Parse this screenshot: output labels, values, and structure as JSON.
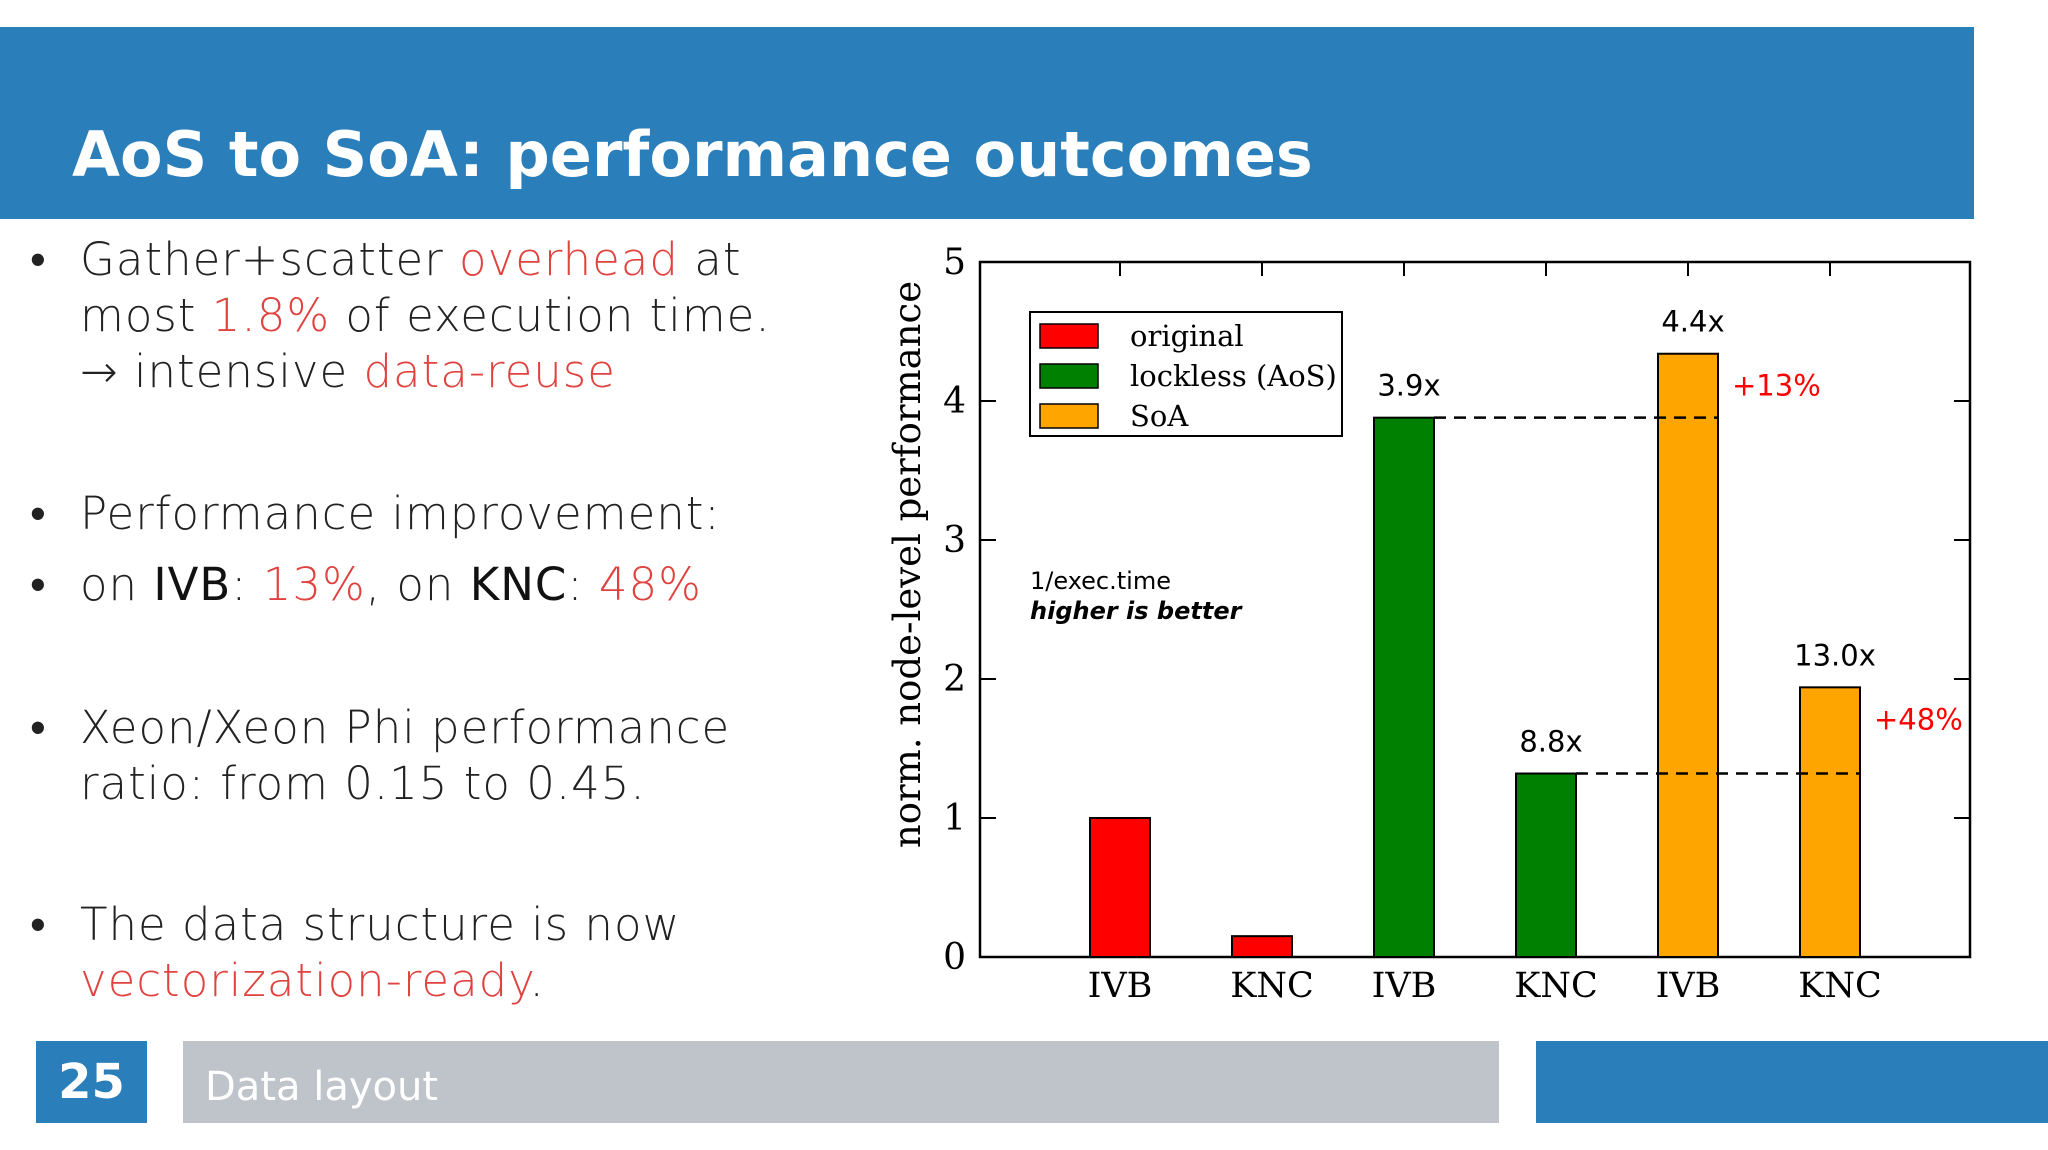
{
  "slide": {
    "title": "AoS to SoA: performance outcomes",
    "number": "25",
    "section": "Data layout"
  },
  "colors": {
    "header": "#2a7fba",
    "highlight": "#e0433f",
    "footer_gray": "#bfc3ca"
  },
  "bullets": {
    "b1": {
      "l1_a": "Gather+scatter ",
      "l1_b": "overhead",
      "l1_c": " at",
      "l2_a": "most ",
      "l2_b": "1.8%",
      "l2_c": " of execution time.",
      "l3_a": "→ intensive ",
      "l3_b": "data-reuse"
    },
    "b2": {
      "text": "Performance improvement:"
    },
    "b3": {
      "a": "on ",
      "b": "IVB",
      "c": ":  ",
      "d": "13%",
      "e": ", on ",
      "f": "KNC",
      "g": ": ",
      "h": "48%"
    },
    "b4": {
      "l1": "Xeon/Xeon Phi performance",
      "l2": "ratio: from 0.15 to 0.45."
    },
    "b5": {
      "l1": "The data structure is now",
      "l2_a": "vectorization-ready",
      "l2_b": "."
    }
  },
  "chart_data": {
    "type": "bar",
    "categories": [
      "IVB",
      "KNC",
      "IVB",
      "KNC",
      "IVB",
      "KNC"
    ],
    "series": [
      {
        "name": "original",
        "color": "#ff0000",
        "values": [
          1.0,
          0.15,
          null,
          null,
          null,
          null
        ]
      },
      {
        "name": "lockless (AoS)",
        "color": "#008000",
        "values": [
          null,
          null,
          3.88,
          1.32,
          null,
          null
        ]
      },
      {
        "name": "SoA",
        "color": "#ffa500",
        "values": [
          null,
          null,
          null,
          null,
          4.34,
          1.94
        ]
      }
    ],
    "bar_labels": [
      "",
      "",
      "3.9x",
      "8.8x",
      "4.4x",
      "13.0x"
    ],
    "ylabel": "norm. node-level performance",
    "ylim": [
      0,
      5
    ],
    "yticks": [
      0,
      1,
      2,
      3,
      4,
      5
    ],
    "legend_position": "top-left",
    "annotations": [
      {
        "text": "+13%",
        "color": "#ff0000",
        "from_bar": 2,
        "to_bar": 4
      },
      {
        "text": "+48%",
        "color": "#ff0000",
        "from_bar": 3,
        "to_bar": 5
      }
    ],
    "note_line1": "1/exec.time",
    "note_line2": "higher is better"
  }
}
